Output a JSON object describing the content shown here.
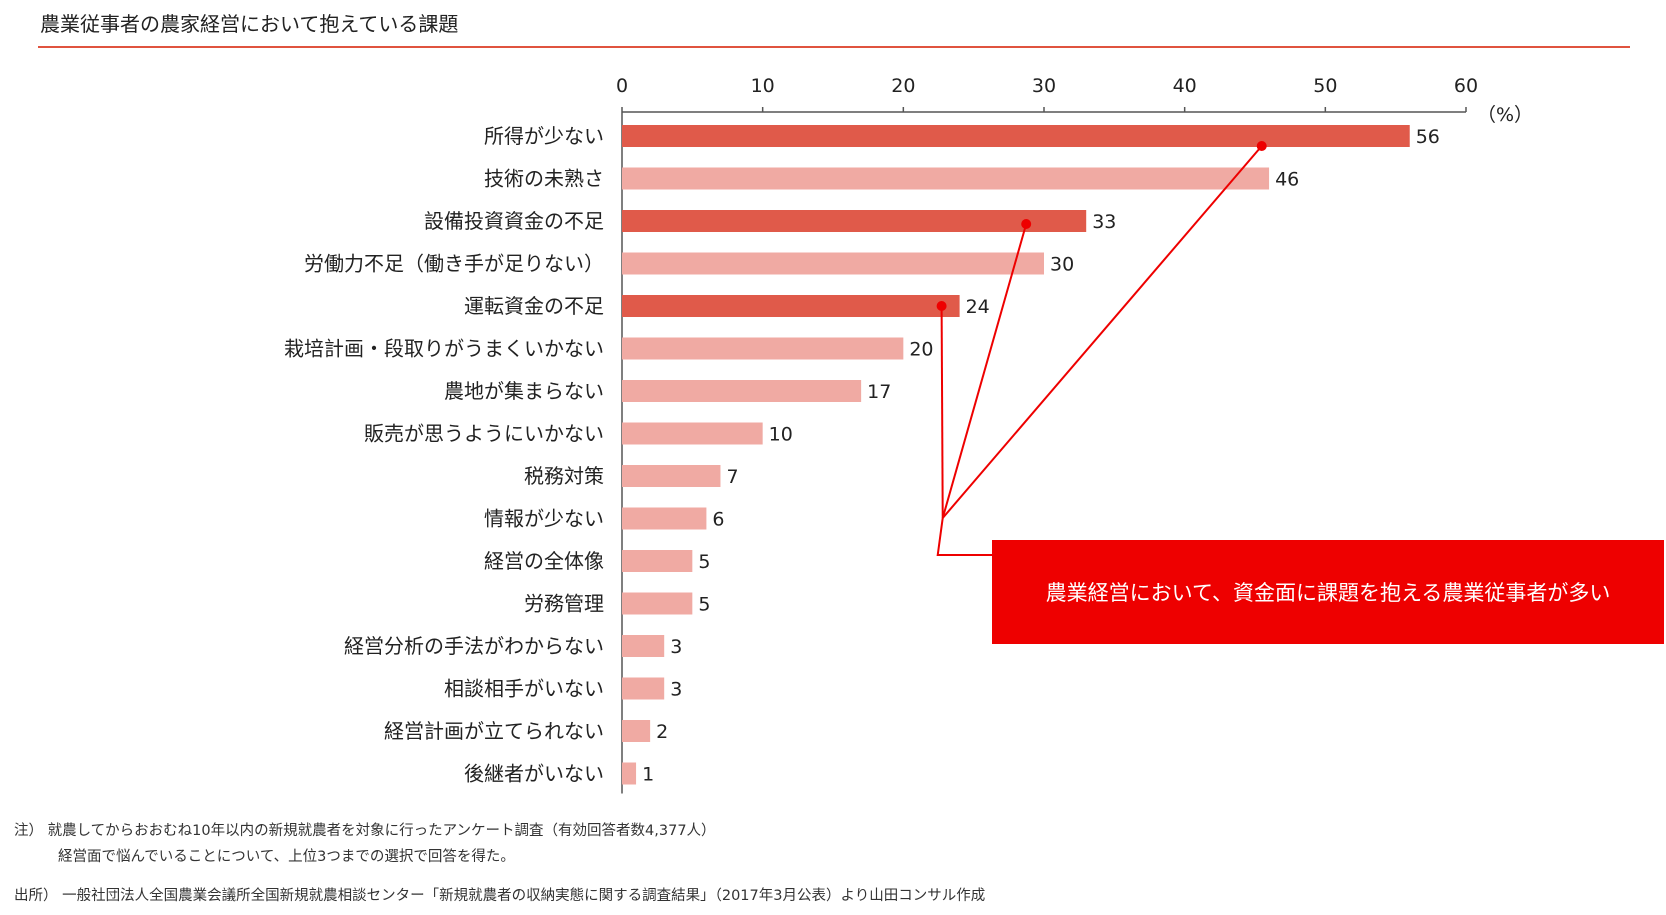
{
  "title": "農業従事者の農家経営において抱えている課題",
  "chart_data": {
    "type": "bar",
    "orientation": "horizontal",
    "categories": [
      "所得が少ない",
      "技術の未熟さ",
      "設備投資資金の不足",
      "労働力不足（働き手が足りない）",
      "運転資金の不足",
      "栽培計画・段取りがうまくいかない",
      "農地が集まらない",
      "販売が思うようにいかない",
      "税務対策",
      "情報が少ない",
      "経営の全体像",
      "労務管理",
      "経営分析の手法がわからない",
      "相談相手がいない",
      "経営計画が立てられない",
      "後継者がいない"
    ],
    "values": [
      56,
      46,
      33,
      30,
      24,
      20,
      17,
      10,
      7,
      6,
      5,
      5,
      3,
      3,
      2,
      1
    ],
    "highlighted": [
      true,
      false,
      true,
      false,
      true,
      false,
      false,
      false,
      false,
      false,
      false,
      false,
      false,
      false,
      false,
      false
    ],
    "xlim": [
      0,
      60
    ],
    "xticks": [
      0,
      10,
      20,
      30,
      40,
      50,
      60
    ],
    "unit": "（%）",
    "colors": {
      "highlight": "#e05a4a",
      "normal": "#f0aaa3",
      "callout": "#ee0000",
      "rule": "#e0533f"
    }
  },
  "callout_text": "農業経営において、資金面に課題を抱える農業従事者が多い",
  "notes": {
    "line1": "注）  就農してからおおむね10年以内の新規就農者を対象に行ったアンケート調査（有効回答者数4,377人）",
    "line2": "経営面で悩んでいることについて、上位3つまでの選択で回答を得た。"
  },
  "source": "出所）  一般社団法人全国農業会議所全国新規就農相談センター「新規就農者の収納実態に関する調査結果」（2017年3月公表）より山田コンサル作成"
}
